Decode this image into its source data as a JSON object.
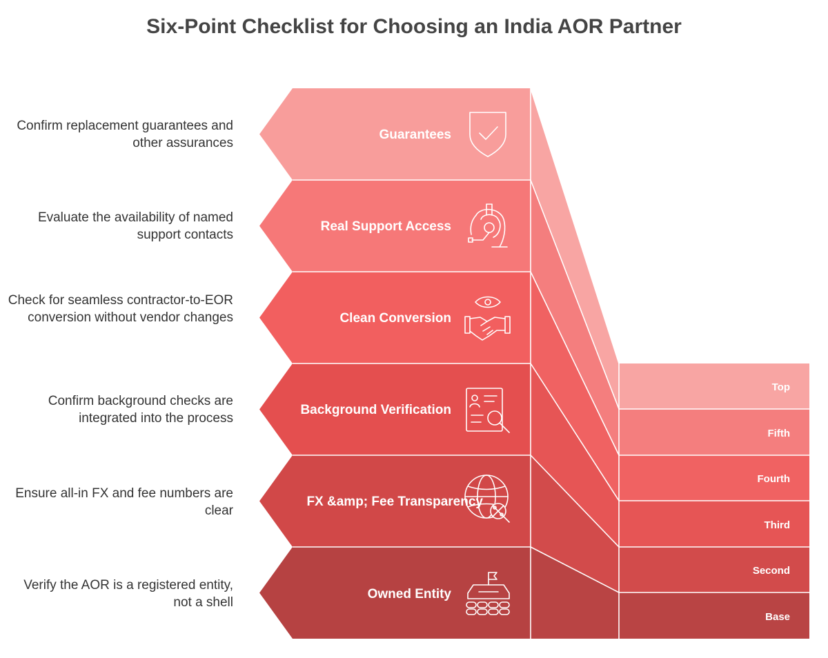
{
  "title": "Six-Point Checklist for Choosing an India AOR Partner",
  "levels": [
    {
      "title": "Guarantees",
      "description": "Confirm replacement guarantees and other assurances",
      "rank": "Top",
      "icon": "shield-check-icon",
      "color": "#F89D9B",
      "side_color": "#F8A5A3"
    },
    {
      "title": "Real Support Access",
      "description": "Evaluate the availability of named support contacts",
      "rank": "Fifth",
      "icon": "headset-support-icon",
      "color": "#F67878",
      "side_color": "#F47E7E"
    },
    {
      "title": "Clean Conversion",
      "description": "Check for seamless contractor-to-EOR conversion without vendor changes",
      "rank": "Fourth",
      "icon": "handshake-eye-icon",
      "color": "#F25F5F",
      "side_color": "#F06262"
    },
    {
      "title": "Background Verification",
      "description": "Confirm background checks are integrated into the process",
      "rank": "Third",
      "icon": "id-card-search-icon",
      "color": "#E44F4F",
      "side_color": "#E65555"
    },
    {
      "title": "FX &amp; Fee Transparency",
      "description": "Ensure all-in FX and fee numbers are clear",
      "rank": "Second",
      "icon": "globe-percent-icon",
      "color": "#D14848",
      "side_color": "#D24B4B"
    },
    {
      "title": "Owned Entity",
      "description": "Verify the AOR is a registered entity, not a shell",
      "rank": "Base",
      "icon": "flag-vehicle-icon",
      "color": "#B64242",
      "side_color": "#B94444"
    }
  ]
}
